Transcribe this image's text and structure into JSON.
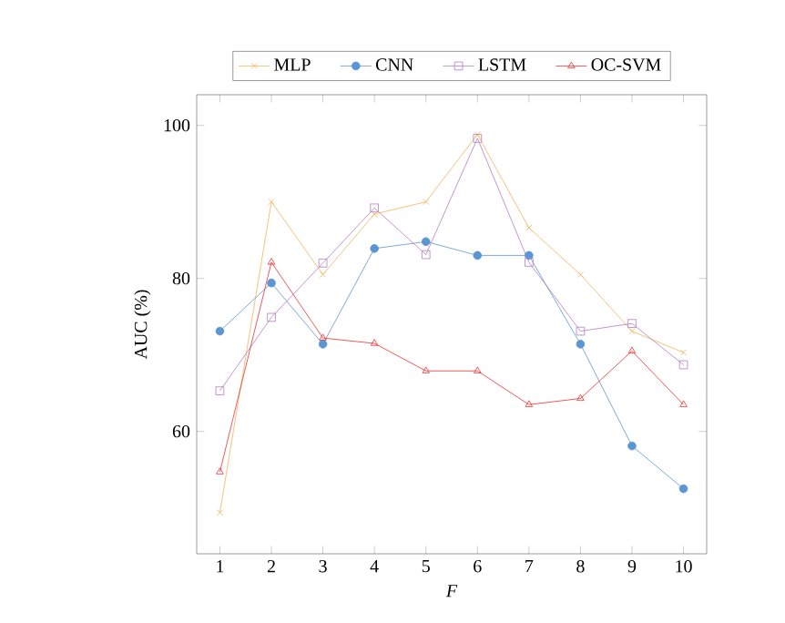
{
  "chart_data": {
    "type": "line",
    "xlabel": "F",
    "ylabel": "AUC (%)",
    "x": [
      1,
      2,
      3,
      4,
      5,
      6,
      7,
      8,
      9,
      10
    ],
    "xlim": [
      0.55,
      10.45
    ],
    "ylim": [
      44,
      104
    ],
    "xticks": [
      1,
      2,
      3,
      4,
      5,
      6,
      7,
      8,
      9,
      10
    ],
    "yticks": [
      60,
      80,
      100
    ],
    "legend": "top",
    "grid": false,
    "line_style": "solid",
    "series": [
      {
        "name": "MLP",
        "color": "#f2b35a",
        "marker": "cross",
        "values": [
          49.4,
          90.0,
          80.5,
          88.4,
          90.0,
          98.8,
          86.6,
          80.5,
          73.1,
          70.3
        ]
      },
      {
        "name": "CNN",
        "color": "#5b96d2",
        "marker": "circle",
        "values": [
          73.1,
          79.4,
          71.4,
          83.9,
          84.8,
          83.0,
          83.0,
          71.4,
          58.1,
          52.5
        ]
      },
      {
        "name": "LSTM",
        "color": "#b47cc0",
        "marker": "square",
        "values": [
          65.3,
          74.9,
          82.0,
          89.2,
          83.1,
          98.3,
          82.1,
          73.1,
          74.1,
          68.7
        ]
      },
      {
        "name": "OC-SVM",
        "color": "#ee3030",
        "marker": "triangle",
        "values": [
          54.7,
          82.1,
          72.2,
          71.5,
          67.9,
          67.9,
          63.5,
          64.3,
          70.5,
          63.5
        ]
      }
    ]
  }
}
